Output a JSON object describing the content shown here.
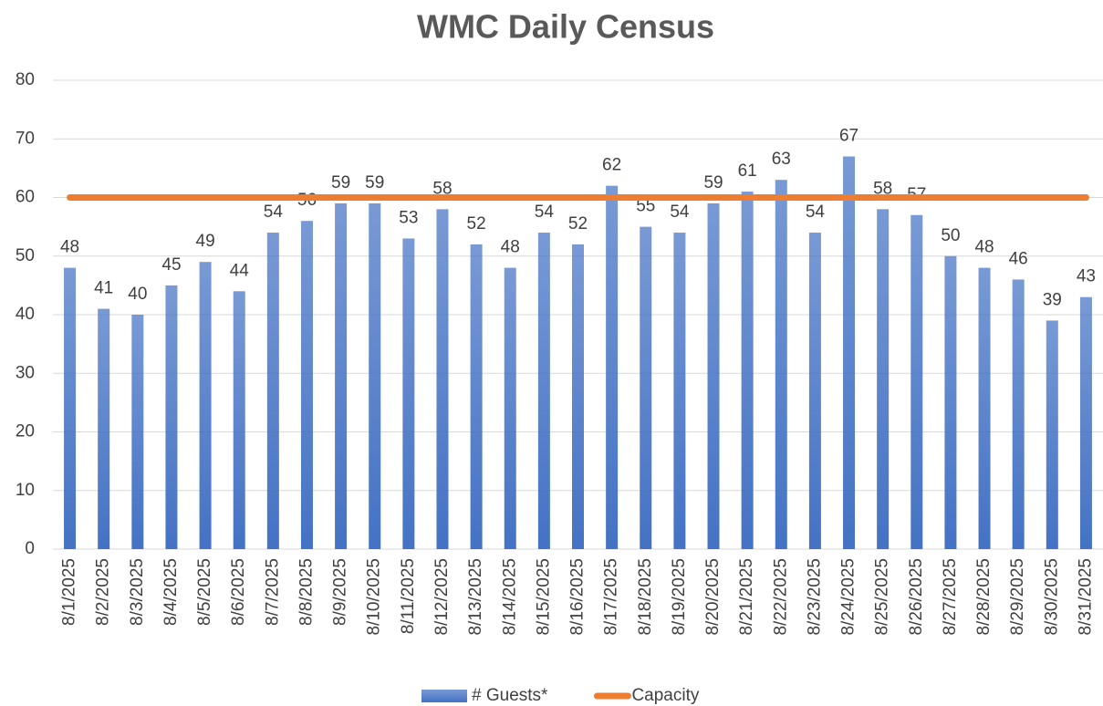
{
  "chart_data": {
    "type": "bar",
    "title": "WMC Daily Census",
    "categories": [
      "8/1/2025",
      "8/2/2025",
      "8/3/2025",
      "8/4/2025",
      "8/5/2025",
      "8/6/2025",
      "8/7/2025",
      "8/8/2025",
      "8/9/2025",
      "8/10/2025",
      "8/11/2025",
      "8/12/2025",
      "8/13/2025",
      "8/14/2025",
      "8/15/2025",
      "8/16/2025",
      "8/17/2025",
      "8/18/2025",
      "8/19/2025",
      "8/20/2025",
      "8/21/2025",
      "8/22/2025",
      "8/23/2025",
      "8/24/2025",
      "8/25/2025",
      "8/26/2025",
      "8/27/2025",
      "8/28/2025",
      "8/29/2025",
      "8/30/2025",
      "8/31/2025"
    ],
    "series": [
      {
        "name": "# Guests*",
        "type": "bar",
        "color": "#4472c4",
        "values": [
          48,
          41,
          40,
          45,
          49,
          44,
          54,
          56,
          59,
          59,
          53,
          58,
          52,
          48,
          54,
          52,
          62,
          55,
          54,
          59,
          61,
          63,
          54,
          67,
          58,
          57,
          50,
          48,
          46,
          39,
          43
        ]
      },
      {
        "name": "Capacity",
        "type": "line",
        "color": "#ed7d31",
        "values": [
          60,
          60,
          60,
          60,
          60,
          60,
          60,
          60,
          60,
          60,
          60,
          60,
          60,
          60,
          60,
          60,
          60,
          60,
          60,
          60,
          60,
          60,
          60,
          60,
          60,
          60,
          60,
          60,
          60,
          60,
          60
        ]
      }
    ],
    "ylim": [
      0,
      80
    ],
    "yticks": [
      0,
      10,
      20,
      30,
      40,
      50,
      60,
      70,
      80
    ],
    "grid": true,
    "legend": "bottom"
  }
}
